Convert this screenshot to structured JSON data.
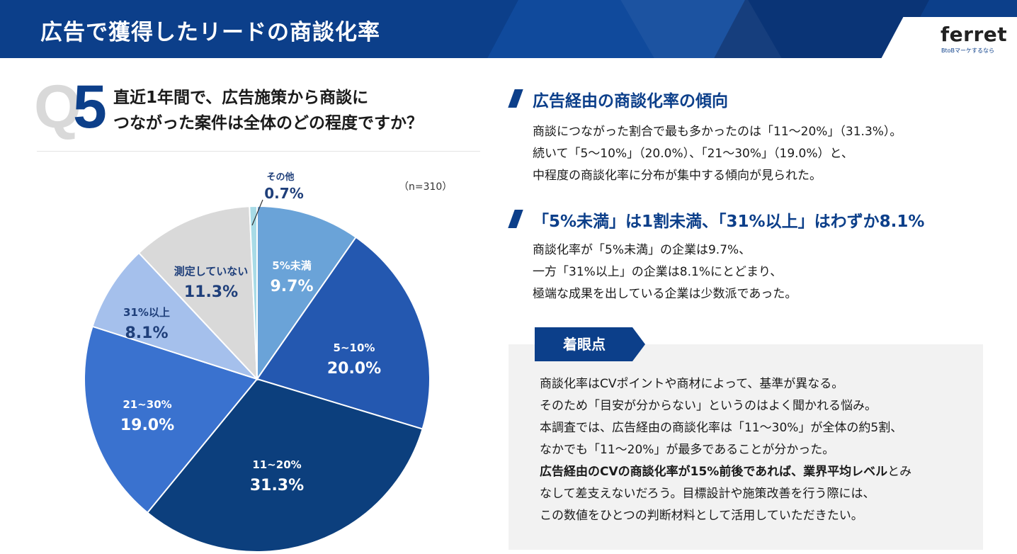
{
  "header": {
    "title": "広告で獲得したリードの商談化率",
    "logo": "ferret",
    "logo_sub": "BtoBマーケするなら"
  },
  "question": {
    "letter": "Q",
    "number": "5",
    "line1": "直近1年間で、広告施策から商談に",
    "line2": "つながった案件は全体のどの程度ですか？",
    "sample": "（n=310）"
  },
  "chart_data": {
    "type": "pie",
    "title": "",
    "start": "12 o'clock, clockwise",
    "slices": [
      {
        "label": "5%未満",
        "value": 9.7,
        "display": "9.7%",
        "color": "#6aa3d8"
      },
      {
        "label": "5~10%",
        "value": 20.0,
        "display": "20.0%",
        "color": "#2458b0"
      },
      {
        "label": "11~20%",
        "value": 31.3,
        "display": "31.3%",
        "color": "#0c3f7d"
      },
      {
        "label": "21~30%",
        "value": 19.0,
        "display": "19.0%",
        "color": "#3a72cf"
      },
      {
        "label": "31%以上",
        "value": 8.1,
        "display": "8.1%",
        "color": "#a5c0ec"
      },
      {
        "label": "測定していない",
        "value": 11.3,
        "display": "11.3%",
        "color": "#d9d9d9"
      },
      {
        "label": "その他",
        "value": 0.7,
        "display": "0.7%",
        "color": "#a8dbe6"
      }
    ]
  },
  "section1": {
    "title": "広告経由の商談化率の傾向",
    "lines": [
      "商談につながった割合で最も多かったのは「11～20%」（31.3%）。",
      "続いて「5～10%」（20.0%）、「21～30%」（19.0%）と、",
      "中程度の商談化率に分布が集中する傾向が見られた。"
    ]
  },
  "section2": {
    "title": "「5%未満」は1割未満、「31%以上」はわずか8.1%",
    "lines": [
      "商談化率が「5%未満」の企業は9.7%、",
      "一方「31%以上」の企業は8.1%にとどまり、",
      "極端な成果を出している企業は少数派であった。"
    ]
  },
  "focus": {
    "tag": "着眼点",
    "lines": [
      "商談化率はCVポイントや商材によって、基準が異なる。",
      "そのため「目安が分からない」というのはよく聞かれる悩み。",
      "本調査では、広告経由の商談化率は「11～30%」が全体の約5割、",
      "なかでも「11～20%」が最多であることが分かった。"
    ],
    "bold_text": "広告経由のCVの商談化率が15%前後であれば、業界平均レベル",
    "bold_tail": "とみ",
    "lines_after": [
      "なして差支えないだろう。目標設計や施策改善を行う際には、",
      "この数値をひとつの判断材料として活用していただきたい。"
    ]
  }
}
